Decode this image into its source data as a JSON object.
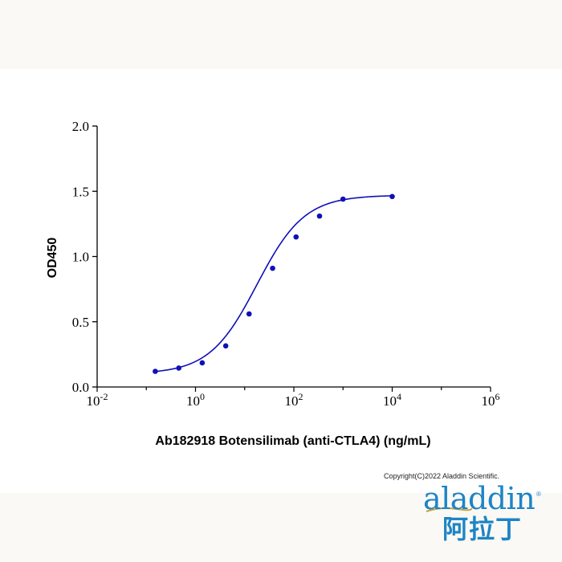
{
  "chart_data": {
    "type": "scatter",
    "title": "",
    "xlabel": "Ab182918 Botensilimab (anti-CTLA4) (ng/mL)",
    "ylabel": "OD450",
    "x_scale": "log10",
    "xlim_exponents": [
      -2,
      6
    ],
    "ylim": [
      0.0,
      2.0
    ],
    "x_ticks": [
      {
        "base": "10",
        "exp": "-2",
        "log": -2
      },
      {
        "base": "10",
        "exp": "0",
        "log": 0
      },
      {
        "base": "10",
        "exp": "2",
        "log": 2
      },
      {
        "base": "10",
        "exp": "4",
        "log": 4
      },
      {
        "base": "10",
        "exp": "6",
        "log": 6
      }
    ],
    "y_ticks": [
      {
        "label": "0.0",
        "value": 0.0
      },
      {
        "label": "0.5",
        "value": 0.5
      },
      {
        "label": "1.0",
        "value": 1.0
      },
      {
        "label": "1.5",
        "value": 1.5
      },
      {
        "label": "2.0",
        "value": 2.0
      }
    ],
    "series": [
      {
        "name": "Ab182918 Botensilimab",
        "color": "#1010b8",
        "points": [
          {
            "x": 0.152,
            "y": 0.12
          },
          {
            "x": 0.457,
            "y": 0.145
          },
          {
            "x": 1.37,
            "y": 0.185
          },
          {
            "x": 4.12,
            "y": 0.315
          },
          {
            "x": 12.3,
            "y": 0.56
          },
          {
            "x": 37.0,
            "y": 0.91
          },
          {
            "x": 111,
            "y": 1.15
          },
          {
            "x": 333,
            "y": 1.31
          },
          {
            "x": 1000,
            "y": 1.44
          },
          {
            "x": 10000,
            "y": 1.46
          }
        ],
        "fit": {
          "model": "4PL",
          "bottom": 0.1,
          "top": 1.47,
          "log_ec50": 1.25,
          "hill": 0.9,
          "x_range": [
            0.152,
            10000
          ]
        }
      }
    ]
  },
  "footer": {
    "copyright": "Copyright(C)2022 Aladdin Scientific."
  },
  "logo": {
    "latin": "aladdin",
    "registered": "®",
    "chinese": "阿拉丁",
    "color": "#1d84c6",
    "accent_color": "#c9a23a"
  }
}
